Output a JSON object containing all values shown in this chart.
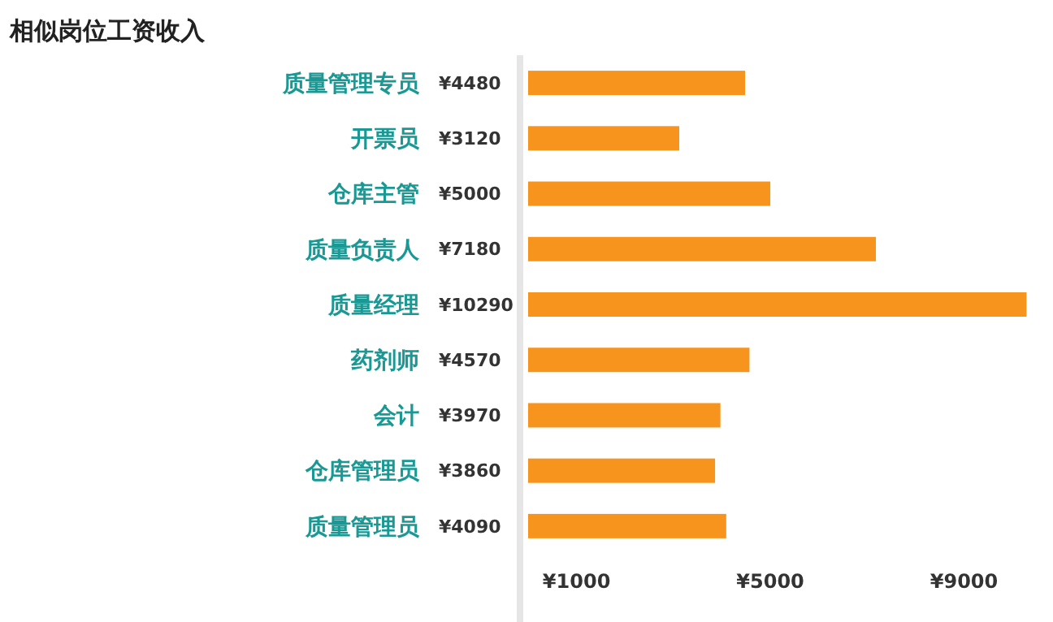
{
  "chart_data": {
    "type": "bar",
    "orientation": "horizontal",
    "title": "相似岗位工资收入",
    "categories": [
      "质量管理专员",
      "开票员",
      "仓库主管",
      "质量负责人",
      "质量经理",
      "药剂师",
      "会计",
      "仓库管理员",
      "质量管理员"
    ],
    "values": [
      4480,
      3120,
      5000,
      7180,
      10290,
      4570,
      3970,
      3860,
      4090
    ],
    "value_labels": [
      "¥4480",
      "¥3120",
      "¥5000",
      "¥7180",
      "¥10290",
      "¥4570",
      "¥3970",
      "¥3860",
      "¥4090"
    ],
    "color": "#f7941d",
    "xlim": [
      0,
      10300
    ],
    "xticks": [
      {
        "value": 1000,
        "label": "¥1000"
      },
      {
        "value": 5000,
        "label": "¥5000"
      },
      {
        "value": 9000,
        "label": "¥9000"
      }
    ]
  }
}
